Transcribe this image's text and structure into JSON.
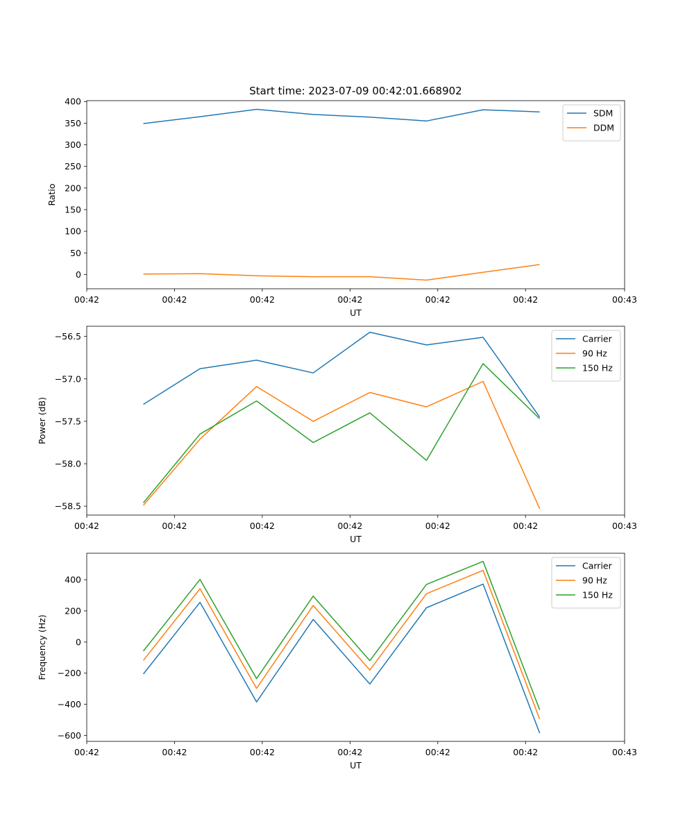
{
  "figure_title": "Start time: 2023-07-09 00:42:01.668902",
  "colors": {
    "blue": "#1f77b4",
    "orange": "#ff7f0e",
    "green": "#2ca02c"
  },
  "chart_data": [
    {
      "type": "line",
      "title": "Start time: 2023-07-09 00:42:01.668902",
      "xlabel": "UT",
      "ylabel": "Ratio",
      "x": [
        1,
        2,
        3,
        4,
        5,
        6,
        7,
        8
      ],
      "xlim": [
        0,
        9.5
      ],
      "x_ticks": [
        0,
        1.55,
        3.1,
        4.65,
        6.2,
        7.75,
        9.5
      ],
      "x_tick_labels": [
        "00:42",
        "00:42",
        "00:42",
        "00:42",
        "00:42",
        "00:42",
        "00:43"
      ],
      "ylim": [
        -33,
        402
      ],
      "y_ticks": [
        0,
        50,
        100,
        150,
        200,
        250,
        300,
        350,
        400
      ],
      "y_tick_labels": [
        "0",
        "50",
        "100",
        "150",
        "200",
        "250",
        "300",
        "350",
        "400"
      ],
      "legend_position": "top-right",
      "series": [
        {
          "name": "SDM",
          "color": "#1f77b4",
          "values": [
            349,
            365,
            382,
            370,
            364,
            355,
            381,
            376
          ]
        },
        {
          "name": "DDM",
          "color": "#ff7f0e",
          "values": [
            1,
            2,
            -3,
            -5,
            -5,
            -13,
            5,
            23
          ]
        }
      ]
    },
    {
      "type": "line",
      "xlabel": "UT",
      "ylabel": "Power (dB)",
      "x": [
        1,
        2,
        3,
        4,
        5,
        6,
        7,
        8
      ],
      "xlim": [
        0,
        9.5
      ],
      "x_ticks": [
        0,
        1.55,
        3.1,
        4.65,
        6.2,
        7.75,
        9.5
      ],
      "x_tick_labels": [
        "00:42",
        "00:42",
        "00:42",
        "00:42",
        "00:42",
        "00:42",
        "00:43"
      ],
      "ylim": [
        -58.605,
        -56.38
      ],
      "y_ticks": [
        -58.5,
        -58.0,
        -57.5,
        -57.0,
        -56.5
      ],
      "y_tick_labels": [
        "−58.5",
        "−58.0",
        "−57.5",
        "−57.0",
        "−56.5"
      ],
      "legend_position": "top-right",
      "series": [
        {
          "name": "Carrier",
          "color": "#1f77b4",
          "values": [
            -57.3,
            -56.88,
            -56.78,
            -56.93,
            -56.45,
            -56.6,
            -56.51,
            -57.45
          ]
        },
        {
          "name": "90 Hz",
          "color": "#ff7f0e",
          "values": [
            -58.49,
            -57.71,
            -57.09,
            -57.5,
            -57.16,
            -57.33,
            -57.03,
            -58.53
          ]
        },
        {
          "name": "150 Hz",
          "color": "#2ca02c",
          "values": [
            -58.46,
            -57.65,
            -57.26,
            -57.75,
            -57.4,
            -57.96,
            -56.82,
            -57.47
          ]
        }
      ]
    },
    {
      "type": "line",
      "xlabel": "UT",
      "ylabel": "Frequency (Hz)",
      "x": [
        1,
        2,
        3,
        4,
        5,
        6,
        7,
        8
      ],
      "xlim": [
        0,
        9.5
      ],
      "x_ticks": [
        0,
        1.55,
        3.1,
        4.65,
        6.2,
        7.75,
        9.5
      ],
      "x_tick_labels": [
        "00:42",
        "00:42",
        "00:42",
        "00:42",
        "00:42",
        "00:42",
        "00:43"
      ],
      "ylim": [
        -638,
        570
      ],
      "y_ticks": [
        -600,
        -400,
        -200,
        0,
        200,
        400
      ],
      "y_tick_labels": [
        "−600",
        "−400",
        "−200",
        "0",
        "200",
        "400"
      ],
      "legend_position": "top-right",
      "series": [
        {
          "name": "Carrier",
          "color": "#1f77b4",
          "values": [
            -205,
            255,
            -385,
            145,
            -270,
            220,
            372,
            -585
          ]
        },
        {
          "name": "90 Hz",
          "color": "#ff7f0e",
          "values": [
            -118,
            342,
            -298,
            235,
            -180,
            310,
            460,
            -495
          ]
        },
        {
          "name": "150 Hz",
          "color": "#2ca02c",
          "values": [
            -58,
            402,
            -235,
            295,
            -120,
            370,
            518,
            -435
          ]
        }
      ]
    }
  ]
}
